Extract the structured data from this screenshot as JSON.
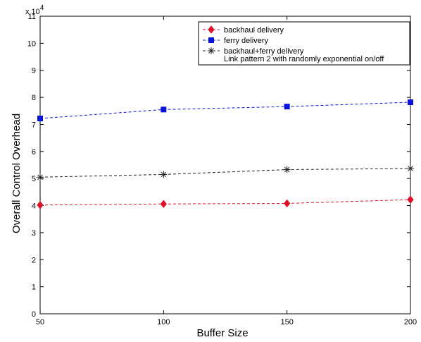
{
  "chart_data": {
    "type": "line",
    "xlabel": "Buffer Size",
    "ylabel": "Overall Control Overhead",
    "y_multiplier": "x 10",
    "y_multiplier_exp": "4",
    "x": [
      50,
      100,
      150,
      200
    ],
    "xlim": [
      50,
      200
    ],
    "ylim": [
      0,
      11
    ],
    "x_ticks": [
      "50",
      "100",
      "150",
      "200"
    ],
    "y_ticks": [
      "0",
      "1",
      "2",
      "3",
      "4",
      "5",
      "6",
      "7",
      "8",
      "9",
      "10",
      "11"
    ],
    "grid": false,
    "legend_position": "top-right",
    "series": [
      {
        "name": "backhaul delivery",
        "values": [
          4.02,
          4.06,
          4.08,
          4.22
        ],
        "color": "#e0102a",
        "marker": "diamond"
      },
      {
        "name": "ferry delivery",
        "values": [
          7.22,
          7.55,
          7.66,
          7.82
        ],
        "color": "#0a14d8",
        "marker": "square"
      },
      {
        "name": "backhaul+ferry delivery",
        "values": [
          5.05,
          5.15,
          5.33,
          5.37
        ],
        "color": "#222222",
        "marker": "asterisk"
      }
    ],
    "legend_note": "Link pattern 2 with randomly exponential on/off"
  }
}
